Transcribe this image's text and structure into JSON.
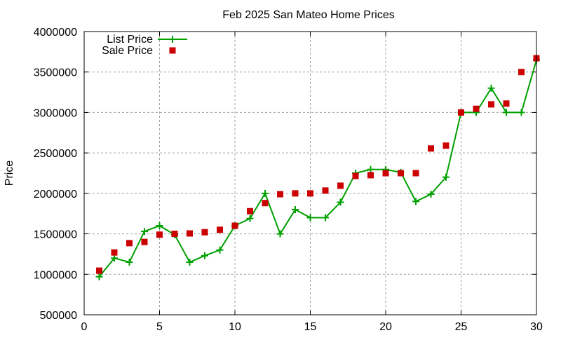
{
  "chart_data": {
    "type": "line",
    "title": "Feb 2025 San Mateo Home Prices",
    "xlabel": "",
    "ylabel": "Price",
    "xlim": [
      0,
      30
    ],
    "ylim": [
      500000,
      4000000
    ],
    "xticks": [
      0,
      5,
      10,
      15,
      20,
      25,
      30
    ],
    "yticks": [
      500000,
      1000000,
      1500000,
      2000000,
      2500000,
      3000000,
      3500000,
      4000000
    ],
    "grid": true,
    "legend_placement": "top-left",
    "x": [
      1,
      2,
      3,
      4,
      5,
      6,
      7,
      8,
      9,
      10,
      11,
      12,
      13,
      14,
      15,
      16,
      17,
      18,
      19,
      20,
      21,
      22,
      23,
      24,
      25,
      26,
      27,
      28,
      29,
      30
    ],
    "series": [
      {
        "name": "List Price",
        "style": "linespoints",
        "marker": "plus",
        "color": "#00a000",
        "values": [
          970000,
          1200000,
          1150000,
          1530000,
          1600000,
          1490000,
          1150000,
          1230000,
          1300000,
          1600000,
          1690000,
          2000000,
          1500000,
          1800000,
          1700000,
          1700000,
          1890000,
          2250000,
          2295000,
          2295000,
          2260000,
          1900000,
          1990000,
          2200000,
          3000000,
          3000000,
          3300000,
          3000000,
          3000000,
          3650000
        ]
      },
      {
        "name": "Sale Price",
        "style": "points",
        "marker": "square",
        "color": "#cc0000",
        "values": [
          1045000,
          1270000,
          1385000,
          1400000,
          1490000,
          1500000,
          1505000,
          1520000,
          1550000,
          1600000,
          1780000,
          1880000,
          1990000,
          2000000,
          2000000,
          2035000,
          2095000,
          2215000,
          2225000,
          2250000,
          2250000,
          2250000,
          2555000,
          2590000,
          3000000,
          3045000,
          3100000,
          3110000,
          3500000,
          3670000
        ]
      }
    ]
  }
}
